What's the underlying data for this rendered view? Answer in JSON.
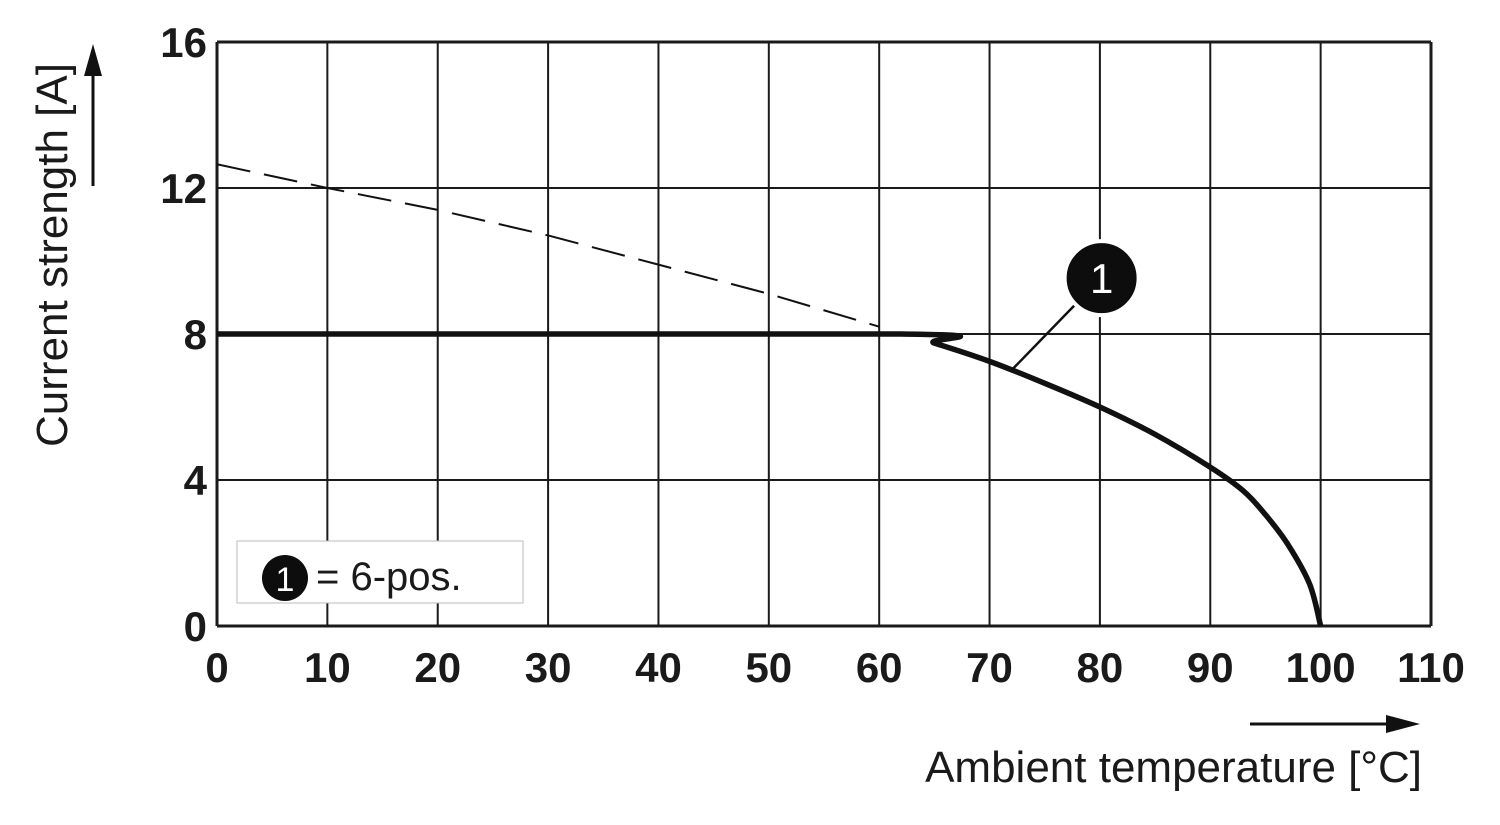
{
  "chart_data": {
    "type": "line",
    "title": "",
    "xlabel": "Ambient temperature [°C]",
    "ylabel": "Current strength [A]",
    "xlim": [
      0,
      110
    ],
    "ylim": [
      0,
      16
    ],
    "x_ticks": [
      0,
      10,
      20,
      30,
      40,
      50,
      60,
      70,
      80,
      90,
      100,
      110
    ],
    "y_ticks": [
      0,
      4,
      8,
      12,
      16
    ],
    "x_tick_labels": [
      "0",
      "10",
      "20",
      "30",
      "40",
      "50",
      "60",
      "70",
      "80",
      "90",
      "100",
      "110"
    ],
    "y_tick_labels": [
      "0",
      "4",
      "8",
      "12",
      "16"
    ],
    "grid": true,
    "series": [
      {
        "name": "1",
        "style": "solid",
        "x": [
          0,
          62,
          65,
          70,
          75,
          80,
          85,
          90,
          93,
          95,
          97,
          99,
          100
        ],
        "y": [
          8,
          8,
          7.75,
          7.25,
          6.65,
          6.0,
          5.25,
          4.35,
          3.7,
          3.05,
          2.25,
          1.15,
          0
        ]
      },
      {
        "name": "",
        "style": "dashed",
        "x": [
          0,
          10,
          20,
          30,
          40,
          50,
          60
        ],
        "y": [
          12.65,
          12.0,
          11.4,
          10.7,
          9.9,
          9.1,
          8.2
        ]
      }
    ],
    "callout": {
      "label": "1",
      "series": "1",
      "at_x": 72
    },
    "legend": {
      "position": "bottom-left",
      "marker": "1",
      "text": "= 6-pos."
    }
  }
}
